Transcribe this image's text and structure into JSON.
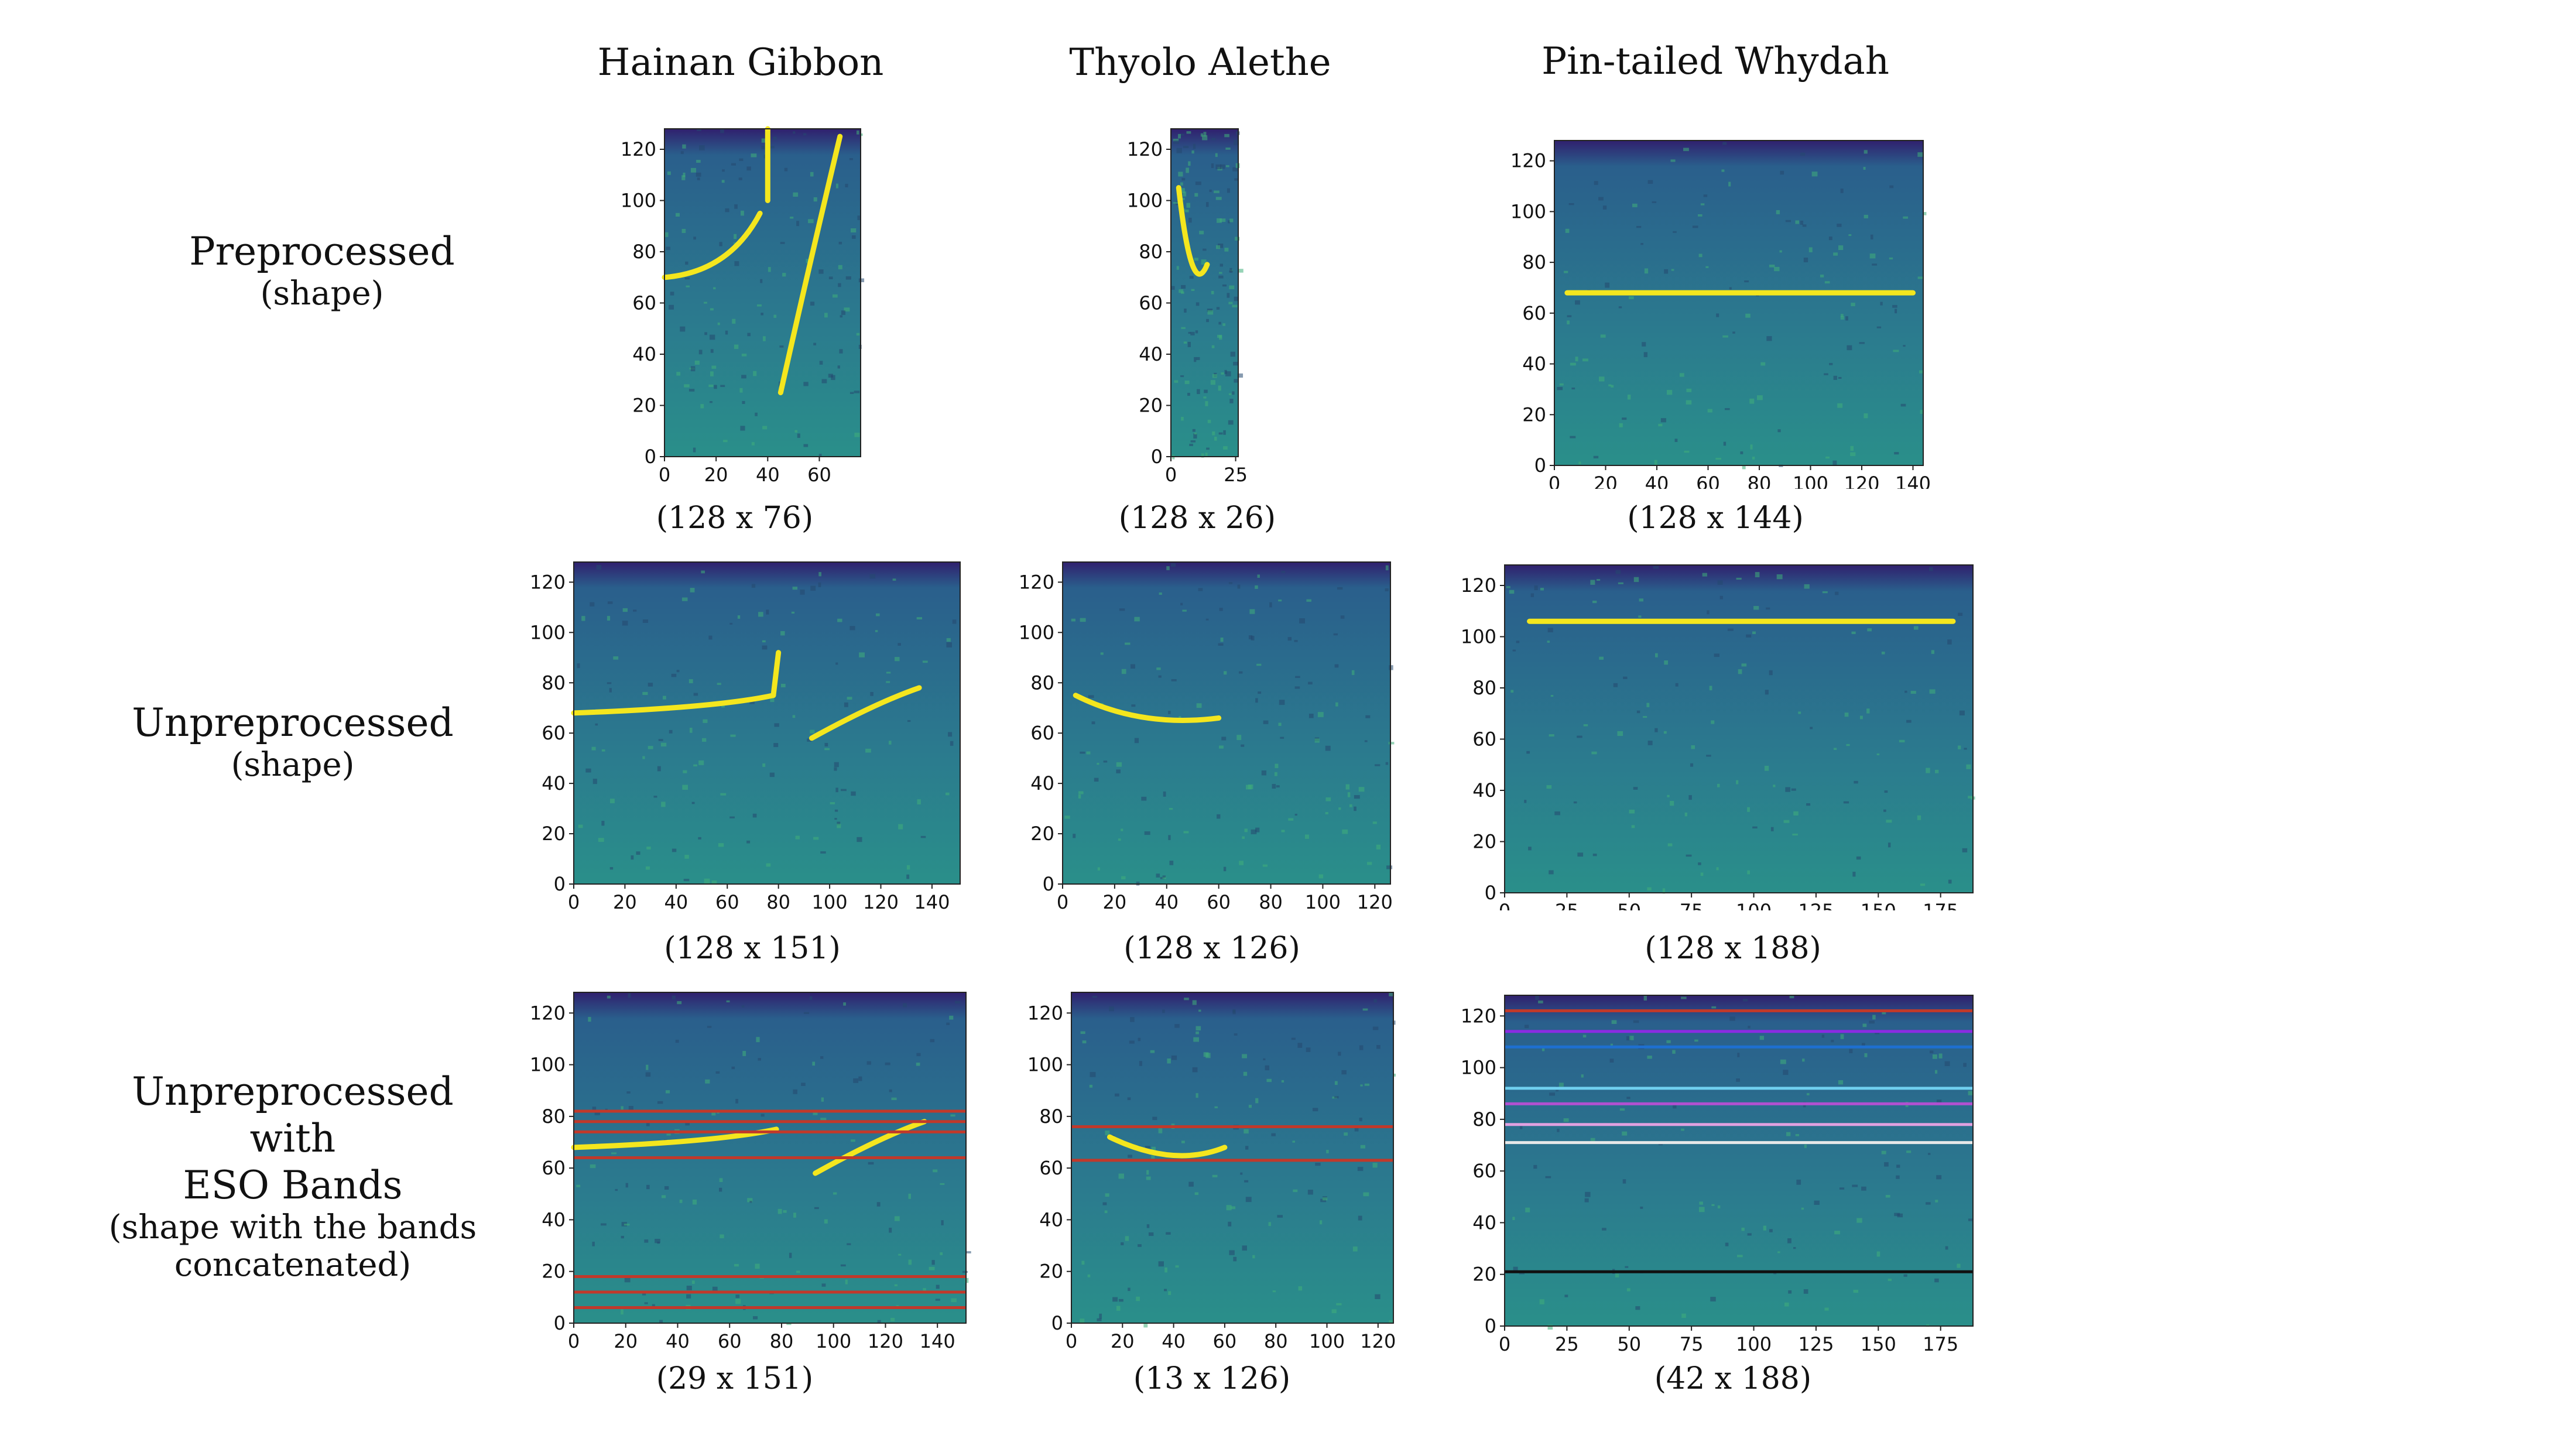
{
  "columns": [
    "Hainan Gibbon",
    "Thyolo Alethe",
    "Pin-tailed Whydah"
  ],
  "rows": [
    {
      "title": "Preprocessed",
      "sub": "(shape)"
    },
    {
      "title": "Unpreprocessed",
      "sub": "(shape)"
    },
    {
      "title_lines": [
        "Unpreprocessed",
        "with",
        "ESO Bands"
      ],
      "sub_lines": [
        "(shape with the bands",
        "concatenated)"
      ]
    }
  ],
  "colors": {
    "spectrogram_low": "#30206e",
    "spectrogram_mid": "#2a8f8a",
    "spectrogram_high": "#f4e61e",
    "band_red": "#c0392b"
  },
  "panels": [
    {
      "id": "p00",
      "shape": "(128 x 76)",
      "yticks": [
        "0",
        "20",
        "40",
        "60",
        "80",
        "100",
        "120"
      ],
      "xticks": [
        "0",
        "20",
        "40",
        "60"
      ],
      "xmax": 76
    },
    {
      "id": "p01",
      "shape": "(128 x 26)",
      "yticks": [
        "0",
        "20",
        "40",
        "60",
        "80",
        "100",
        "120"
      ],
      "xticks": [
        "0",
        "25"
      ],
      "xmax": 26
    },
    {
      "id": "p02",
      "shape": "(128 x 144)",
      "yticks": [
        "0",
        "20",
        "40",
        "60",
        "80",
        "100",
        "120"
      ],
      "xticks": [
        "0",
        "20",
        "40",
        "60",
        "80",
        "100",
        "120",
        "140"
      ],
      "xmax": 144
    },
    {
      "id": "p10",
      "shape": "(128 x 151)",
      "yticks": [
        "0",
        "20",
        "40",
        "60",
        "80",
        "100",
        "120"
      ],
      "xticks": [
        "0",
        "20",
        "40",
        "60",
        "80",
        "100",
        "120",
        "140"
      ],
      "xmax": 151
    },
    {
      "id": "p11",
      "shape": "(128 x 126)",
      "yticks": [
        "0",
        "20",
        "40",
        "60",
        "80",
        "100",
        "120"
      ],
      "xticks": [
        "0",
        "20",
        "40",
        "60",
        "80",
        "100",
        "120"
      ],
      "xmax": 126
    },
    {
      "id": "p12",
      "shape": "(128 x 188)",
      "yticks": [
        "0",
        "20",
        "40",
        "60",
        "80",
        "100",
        "120"
      ],
      "xticks": [
        "0",
        "25",
        "50",
        "75",
        "100",
        "125",
        "150",
        "175"
      ],
      "xmax": 188
    },
    {
      "id": "p20",
      "shape": "(29 x 151)",
      "yticks": [
        "0",
        "20",
        "40",
        "60",
        "80",
        "100",
        "120"
      ],
      "xticks": [
        "0",
        "20",
        "40",
        "60",
        "80",
        "100",
        "120",
        "140"
      ],
      "xmax": 151
    },
    {
      "id": "p21",
      "shape": "(13 x 126)",
      "yticks": [
        "0",
        "20",
        "40",
        "60",
        "80",
        "100",
        "120"
      ],
      "xticks": [
        "0",
        "20",
        "40",
        "60",
        "80",
        "100",
        "120"
      ],
      "xmax": 126
    },
    {
      "id": "p22",
      "shape": "(42 x 188)",
      "yticks": [
        "0",
        "20",
        "40",
        "60",
        "80",
        "100",
        "120"
      ],
      "xticks": [
        "0",
        "25",
        "50",
        "75",
        "100",
        "125",
        "150",
        "175"
      ],
      "xmax": 188
    }
  ]
}
